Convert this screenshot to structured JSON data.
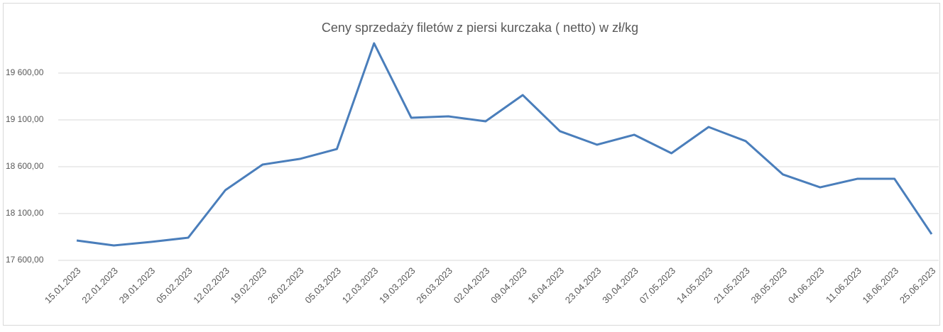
{
  "chart_data": {
    "type": "line",
    "title": "Ceny sprzedaży filetów z piersi kurczaka ( netto) w zł/kg",
    "categories": [
      "15.01.2023",
      "22.01.2023",
      "29.01.2023",
      "05.02.2023",
      "12.02.2023",
      "19.02.2023",
      "26.02.2023",
      "05.03.2023",
      "12.03.2023",
      "19.03.2023",
      "26.03.2023",
      "02.04.2023",
      "09.04.2023",
      "16.04.2023",
      "23.04.2023",
      "30.04.2023",
      "07.05.2023",
      "14.05.2023",
      "21.05.2023",
      "28.05.2023",
      "04.06.2023",
      "11.06.2023",
      "18.06.2023",
      "25.06.2023"
    ],
    "values": [
      17812,
      17759,
      17797,
      17842,
      18350,
      18623,
      18683,
      18789,
      19918,
      19123,
      19138,
      19085,
      19365,
      18979,
      18835,
      18941,
      18744,
      19024,
      18873,
      18517,
      18380,
      18471,
      18471,
      17880
    ],
    "color": "#4a7ebb",
    "ylim": [
      17600,
      20000
    ],
    "yticks": [
      {
        "value": 17600,
        "label": "17 600,00"
      },
      {
        "value": 18100,
        "label": "18 100,00"
      },
      {
        "value": 18600,
        "label": "18 600,00"
      },
      {
        "value": 19100,
        "label": "19 100,00"
      },
      {
        "value": 19600,
        "label": "19 600,00"
      }
    ],
    "grid": true
  }
}
